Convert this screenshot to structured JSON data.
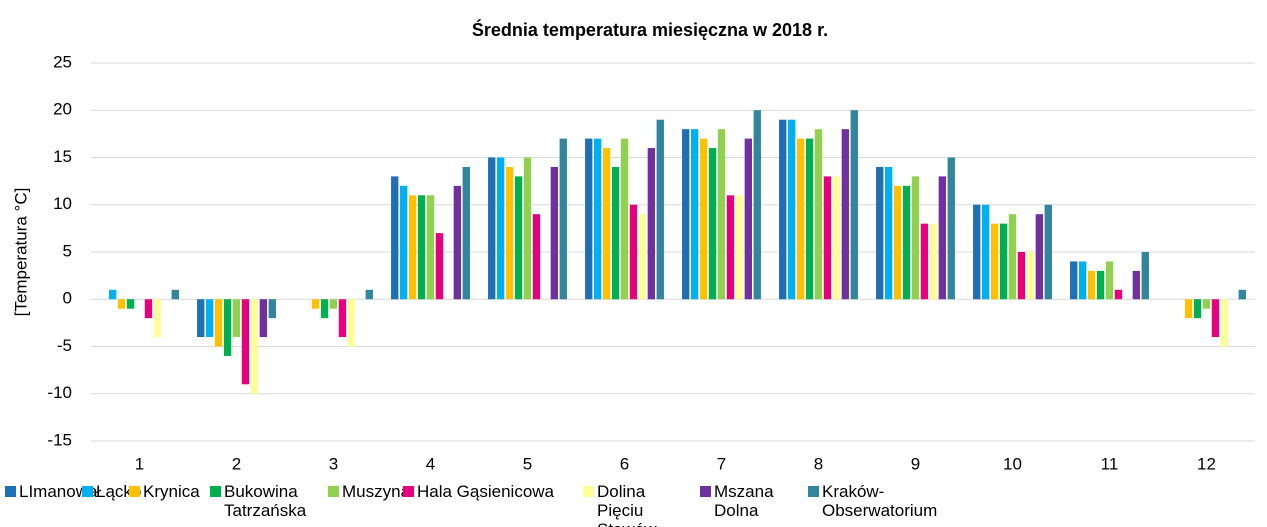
{
  "chart_data": {
    "type": "bar",
    "title": "Średnia temperatura miesięczna w 2018 r.",
    "y_label": "[Temperatura °C]",
    "categories": [
      "1",
      "2",
      "3",
      "4",
      "5",
      "6",
      "7",
      "8",
      "9",
      "10",
      "11",
      "12"
    ],
    "ylim": [
      -15,
      25
    ],
    "yticks": [
      -15,
      -10,
      -5,
      0,
      5,
      10,
      15,
      20,
      25
    ],
    "grid": true,
    "legend": "bottom",
    "series": [
      {
        "name": "LImanowa",
        "color": "#1f6fb5",
        "values": [
          0,
          -4,
          0,
          13,
          15,
          17,
          18,
          19,
          14,
          10,
          4,
          0
        ]
      },
      {
        "name": "Łącko",
        "color": "#00b0f0",
        "values": [
          1,
          -4,
          0,
          12,
          15,
          17,
          18,
          19,
          14,
          10,
          4,
          0
        ]
      },
      {
        "name": "Krynica",
        "color": "#ffc000",
        "values": [
          -1,
          -5,
          -1,
          11,
          14,
          16,
          17,
          17,
          12,
          8,
          3,
          -2
        ]
      },
      {
        "name": "Bukowina Tatrzańska",
        "color": "#00b050",
        "values": [
          -1,
          -6,
          -2,
          11,
          13,
          14,
          16,
          17,
          12,
          8,
          3,
          -2
        ]
      },
      {
        "name": "Muszyna",
        "color": "#92d050",
        "values": [
          0,
          -4,
          -1,
          11,
          15,
          17,
          18,
          18,
          13,
          9,
          4,
          -1
        ]
      },
      {
        "name": "Hala Gąsienicowa",
        "color": "#e6007e",
        "values": [
          -2,
          -9,
          -4,
          7,
          9,
          10,
          11,
          13,
          8,
          5,
          1,
          -4
        ]
      },
      {
        "name": "Dolina Pięciu Stawów",
        "color": "#ffff99",
        "values": [
          -4,
          -10,
          -5,
          null,
          null,
          9,
          11,
          13,
          8,
          5,
          0,
          -5
        ]
      },
      {
        "name": "Mszana Dolna",
        "color": "#7030a0",
        "values": [
          0,
          -4,
          0,
          12,
          14,
          16,
          17,
          18,
          13,
          9,
          3,
          0
        ]
      },
      {
        "name": "Kraków-Obserwatorium",
        "color": "#31859c",
        "values": [
          1,
          -2,
          1,
          14,
          17,
          19,
          20,
          20,
          15,
          10,
          5,
          1
        ]
      }
    ]
  }
}
